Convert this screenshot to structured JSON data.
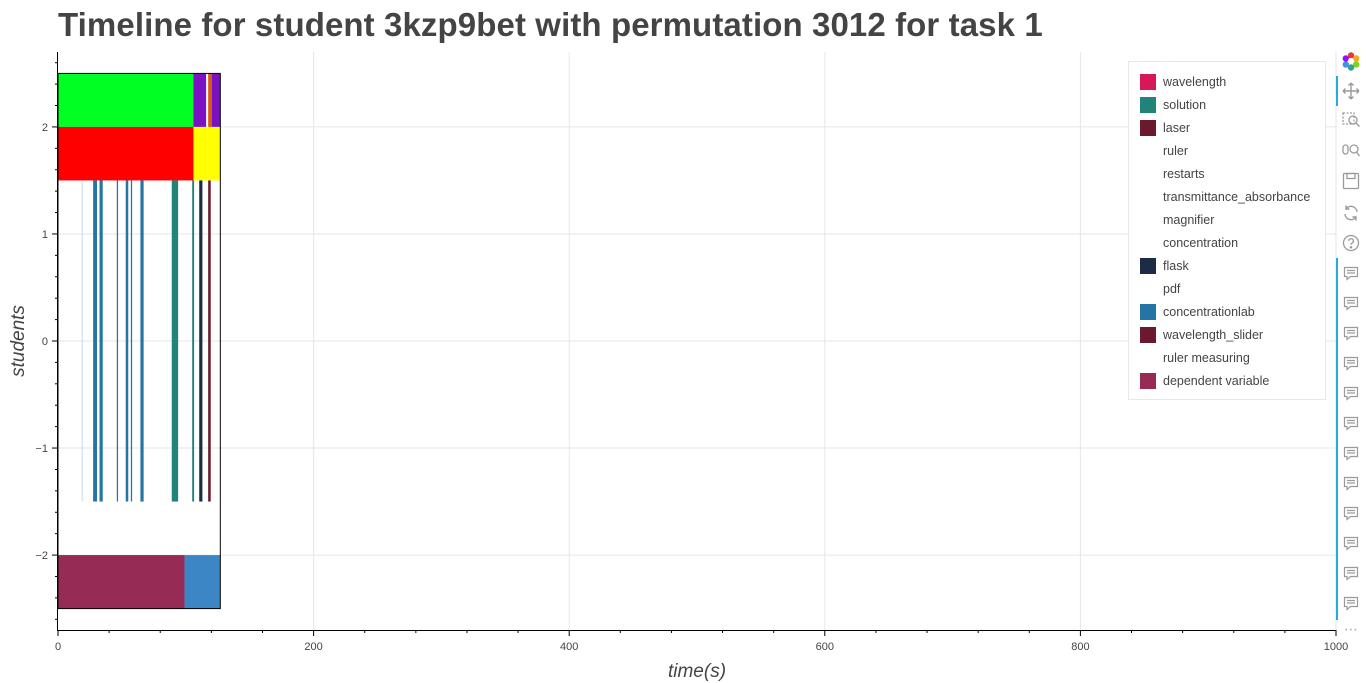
{
  "title": "Timeline for student 3kzp9bet with permutation 3012 for task 1",
  "chart_data": {
    "type": "bar",
    "title": "Timeline for student 3kzp9bet with permutation 3012 for task 1",
    "xlabel": "time(s)",
    "ylabel": "students",
    "xlim": [
      0,
      1000
    ],
    "ylim": [
      -2.7,
      2.7
    ],
    "xticks": [
      0,
      200,
      400,
      600,
      800,
      1000
    ],
    "yticks": [
      -2,
      -1,
      0,
      1,
      2
    ],
    "ytick_labels": [
      "−2",
      "−1",
      "0",
      "1",
      "2"
    ],
    "grid": true,
    "legend_position": "top-right",
    "legend": [
      {
        "label": "wavelength",
        "color": "#d6175a"
      },
      {
        "label": "solution",
        "color": "#21837a"
      },
      {
        "label": "laser",
        "color": "#6b1a2e"
      },
      {
        "label": "ruler",
        "color": ""
      },
      {
        "label": "restarts",
        "color": ""
      },
      {
        "label": "transmittance_absorbance",
        "color": ""
      },
      {
        "label": "magnifier",
        "color": ""
      },
      {
        "label": "concentration",
        "color": ""
      },
      {
        "label": "flask",
        "color": "#1b2c45"
      },
      {
        "label": "pdf",
        "color": ""
      },
      {
        "label": "concentrationlab",
        "color": "#2474a6"
      },
      {
        "label": "wavelength_slider",
        "color": "#6b1a2e"
      },
      {
        "label": "ruler measuring",
        "color": ""
      },
      {
        "label": "dependent variable",
        "color": "#962b55"
      }
    ],
    "rows": [
      {
        "y0": 2.0,
        "y1": 2.5,
        "segments": [
          {
            "x0": 0,
            "x1": 106,
            "color": "#00ff22"
          },
          {
            "x0": 106,
            "x1": 116,
            "color": "#7a12c4"
          },
          {
            "x0": 116,
            "x1": 117.5,
            "color": "#ffffff"
          },
          {
            "x0": 117.5,
            "x1": 120.5,
            "color": "#d95a14"
          },
          {
            "x0": 120.5,
            "x1": 127,
            "color": "#7a12c4"
          }
        ]
      },
      {
        "y0": 1.5,
        "y1": 2.0,
        "segments": [
          {
            "x0": 0,
            "x1": 106,
            "color": "#ff0000"
          },
          {
            "x0": 106,
            "x1": 127,
            "color": "#ffff00"
          }
        ]
      },
      {
        "y0": -2.5,
        "y1": -2.0,
        "segments": [
          {
            "x0": 0,
            "x1": 99,
            "color": "#962b55"
          },
          {
            "x0": 99,
            "x1": 127,
            "color": "#3d86c6"
          }
        ]
      }
    ],
    "events": {
      "y0": -1.5,
      "y1": 1.5,
      "marks": [
        {
          "x0": 18.5,
          "x1": 19.3,
          "color": "#c6dbe9"
        },
        {
          "x0": 27.5,
          "x1": 30.5,
          "color": "#2474a6"
        },
        {
          "x0": 32.5,
          "x1": 35,
          "color": "#2474a6"
        },
        {
          "x0": 46,
          "x1": 47,
          "color": "#2474a6"
        },
        {
          "x0": 53,
          "x1": 55,
          "color": "#2474a6"
        },
        {
          "x0": 57,
          "x1": 58,
          "color": "#2474a6"
        },
        {
          "x0": 64.5,
          "x1": 67,
          "color": "#2474a6"
        },
        {
          "x0": 89,
          "x1": 94,
          "color": "#21837a"
        },
        {
          "x0": 105,
          "x1": 106.5,
          "color": "#21837a"
        },
        {
          "x0": 110.5,
          "x1": 113,
          "color": "#1b2c45"
        },
        {
          "x0": 117.5,
          "x1": 119.5,
          "color": "#6b1a2e"
        }
      ]
    },
    "outline": {
      "x0": 0,
      "x1": 127,
      "y0": -2.5,
      "y1": 2.5
    }
  },
  "toolbar": {
    "tools": [
      {
        "name": "bokeh-logo-icon"
      },
      {
        "name": "pan-icon"
      },
      {
        "name": "box-zoom-icon"
      },
      {
        "name": "wheel-zoom-icon"
      },
      {
        "name": "save-icon"
      },
      {
        "name": "reset-icon"
      },
      {
        "name": "help-icon"
      }
    ],
    "hover_count": 12,
    "more_label": "⋯"
  }
}
